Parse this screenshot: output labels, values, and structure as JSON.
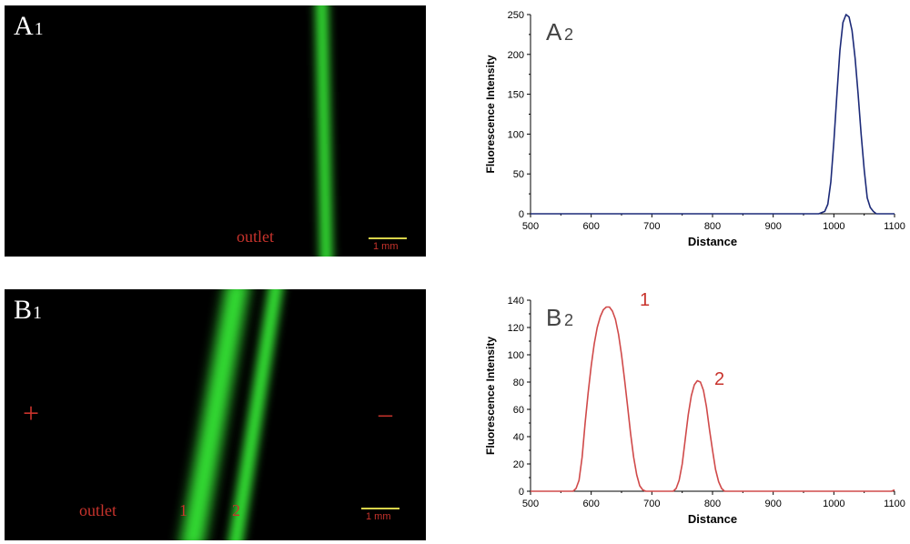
{
  "panel_a1": {
    "label": "A",
    "label_sub": "1",
    "outlet": "outlet",
    "scale": "1 mm"
  },
  "panel_b1": {
    "label": "B",
    "label_sub": "1",
    "outlet": "outlet",
    "band_1": "1",
    "band_2": "2",
    "plus": "+",
    "minus": "–",
    "scale": "1 mm"
  },
  "colors": {
    "fluorescence": "#33dd33",
    "annotation_red": "#c8332c",
    "series_a2": "#1c2a78",
    "series_b2": "#d04a4a"
  },
  "chart_data": [
    {
      "type": "line",
      "panel_label": "A",
      "panel_label_sub": "2",
      "xlabel": "Distance",
      "ylabel": "Fluorescence Intensity",
      "xlim": [
        500,
        1100
      ],
      "ylim": [
        0,
        250
      ],
      "xticks": [
        500,
        600,
        700,
        800,
        900,
        1000,
        1100
      ],
      "yticks": [
        0,
        50,
        100,
        150,
        200,
        250
      ],
      "grid": false,
      "series": [
        {
          "x": [
            500,
            600,
            700,
            800,
            900,
            975,
            985,
            990,
            995,
            1000,
            1005,
            1010,
            1015,
            1020,
            1025,
            1030,
            1035,
            1040,
            1045,
            1050,
            1055,
            1060,
            1065,
            1070,
            1080,
            1100
          ],
          "y": [
            0,
            0,
            0,
            0,
            0,
            0,
            3,
            12,
            40,
            90,
            150,
            205,
            240,
            250,
            247,
            230,
            195,
            150,
            100,
            55,
            20,
            8,
            3,
            0,
            0,
            0
          ]
        }
      ],
      "annotations": []
    },
    {
      "type": "line",
      "panel_label": "B",
      "panel_label_sub": "2",
      "xlabel": "Distance",
      "ylabel": "Fluorescence Intensity",
      "xlim": [
        500,
        1100
      ],
      "ylim": [
        0,
        140
      ],
      "xticks": [
        500,
        600,
        700,
        800,
        900,
        1000,
        1100
      ],
      "yticks": [
        0,
        20,
        40,
        60,
        80,
        100,
        120,
        140
      ],
      "grid": false,
      "series": [
        {
          "x": [
            500,
            560,
            570,
            575,
            580,
            585,
            590,
            595,
            600,
            605,
            610,
            615,
            620,
            625,
            630,
            635,
            640,
            645,
            650,
            655,
            660,
            665,
            670,
            675,
            680,
            685,
            690,
            700,
            735,
            740,
            745,
            750,
            755,
            760,
            765,
            770,
            775,
            780,
            785,
            790,
            795,
            800,
            805,
            810,
            815,
            820,
            830,
            900,
            1000,
            1095,
            1100
          ],
          "y": [
            0,
            0,
            0,
            2,
            8,
            25,
            50,
            72,
            92,
            108,
            120,
            128,
            133,
            135,
            135,
            132,
            126,
            115,
            100,
            82,
            62,
            42,
            25,
            12,
            4,
            1,
            0,
            0,
            0,
            2,
            8,
            20,
            38,
            56,
            70,
            78,
            81,
            80,
            74,
            62,
            45,
            30,
            16,
            7,
            2,
            0,
            0,
            0,
            0,
            0,
            1
          ]
        }
      ],
      "annotations": [
        {
          "text": "1",
          "x": 680,
          "y": 140
        },
        {
          "text": "2",
          "x": 803,
          "y": 82
        }
      ]
    }
  ]
}
